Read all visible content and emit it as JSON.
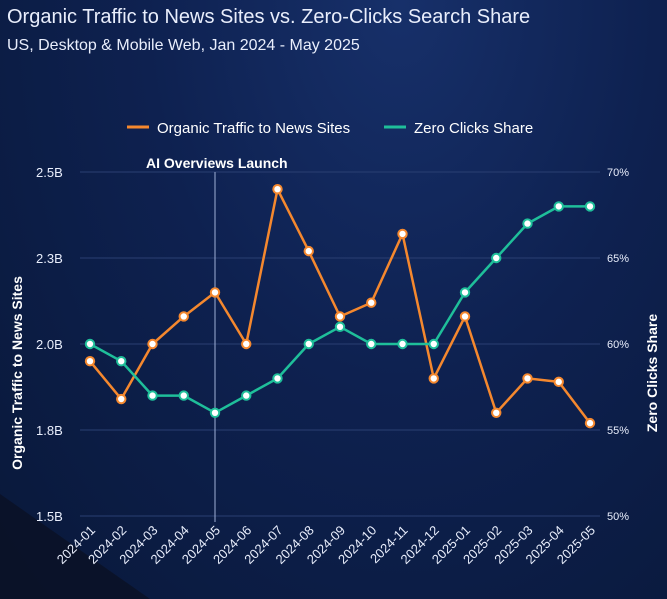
{
  "title": "Organic Traffic to News Sites vs. Zero-Clicks Search Share",
  "subtitle": "US, Desktop & Mobile Web, Jan 2024 - May 2025",
  "colors": {
    "traffic": "#f5882e",
    "zero_clicks": "#1fbf9a",
    "grid": "#2a3f72",
    "annotation_line": "#9fb0d6"
  },
  "chart_data": {
    "type": "line",
    "categories": [
      "2024-01",
      "2024-02",
      "2024-03",
      "2024-04",
      "2024-05",
      "2024-06",
      "2024-07",
      "2024-08",
      "2024-09",
      "2024-10",
      "2024-11",
      "2024-12",
      "2025-01",
      "2025-02",
      "2025-03",
      "2025-04",
      "2025-05"
    ],
    "series": [
      {
        "name": "Organic Traffic to News Sites",
        "axis": "left",
        "values": [
          1.95,
          1.84,
          2.0,
          2.08,
          2.15,
          2.0,
          2.45,
          2.27,
          2.08,
          2.12,
          2.32,
          1.9,
          2.08,
          1.8,
          1.9,
          1.89,
          1.77
        ]
      },
      {
        "name": "Zero Clicks Share",
        "axis": "right",
        "values": [
          60,
          59,
          57,
          57,
          56,
          57,
          58,
          60,
          61,
          60,
          60,
          60,
          63,
          65,
          67,
          68,
          68
        ]
      }
    ],
    "left_axis": {
      "label": "Organic Traffic to News Sites",
      "range": [
        1.5,
        2.5
      ],
      "ticks": [
        {
          "value": 2.5,
          "label": "2.5B"
        },
        {
          "value": 2.25,
          "label": "2.3B"
        },
        {
          "value": 2.0,
          "label": "2.0B"
        },
        {
          "value": 1.75,
          "label": "1.8B"
        },
        {
          "value": 1.5,
          "label": "1.5B"
        }
      ]
    },
    "right_axis": {
      "label": "Zero Clicks Share",
      "range": [
        50,
        70
      ],
      "ticks": [
        {
          "value": 70,
          "label": "70%"
        },
        {
          "value": 65,
          "label": "65%"
        },
        {
          "value": 60,
          "label": "60%"
        },
        {
          "value": 55,
          "label": "55%"
        },
        {
          "value": 50,
          "label": "50%"
        }
      ]
    },
    "annotation": {
      "category": "2024-05",
      "label": "AI Overviews Launch"
    },
    "legend_position": "top-center",
    "grid": true
  }
}
